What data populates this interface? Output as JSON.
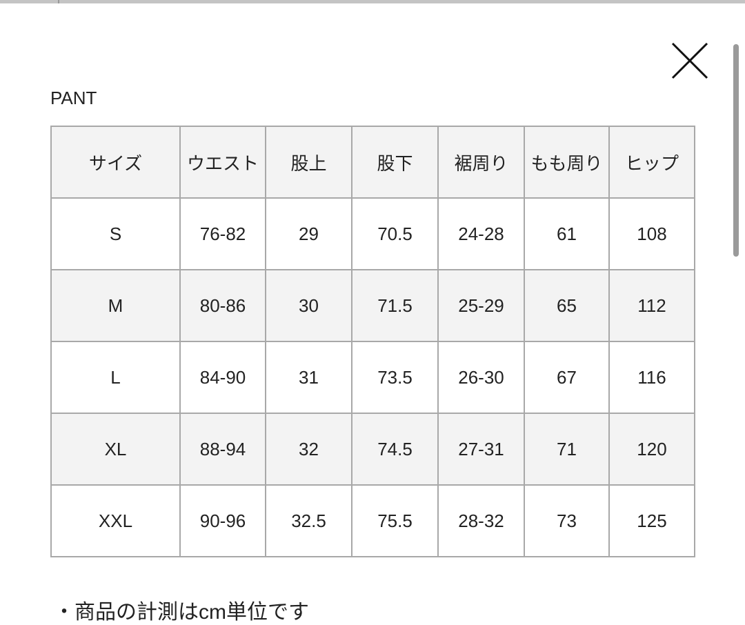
{
  "title": "PANT",
  "table": {
    "header": [
      "サイズ",
      "ウエスト",
      "股上",
      "股下",
      "裾周り",
      "もも周り",
      "ヒップ"
    ],
    "rows": [
      [
        "S",
        "76-82",
        "29",
        "70.5",
        "24-28",
        "61",
        "108"
      ],
      [
        "M",
        "80-86",
        "30",
        "71.5",
        "25-29",
        "65",
        "112"
      ],
      [
        "L",
        "84-90",
        "31",
        "73.5",
        "26-30",
        "67",
        "116"
      ],
      [
        "XL",
        "88-94",
        "32",
        "74.5",
        "27-31",
        "71",
        "120"
      ],
      [
        "XXL",
        "90-96",
        "32.5",
        "75.5",
        "28-32",
        "73",
        "125"
      ]
    ]
  },
  "note": "・商品の計測はcm単位です"
}
